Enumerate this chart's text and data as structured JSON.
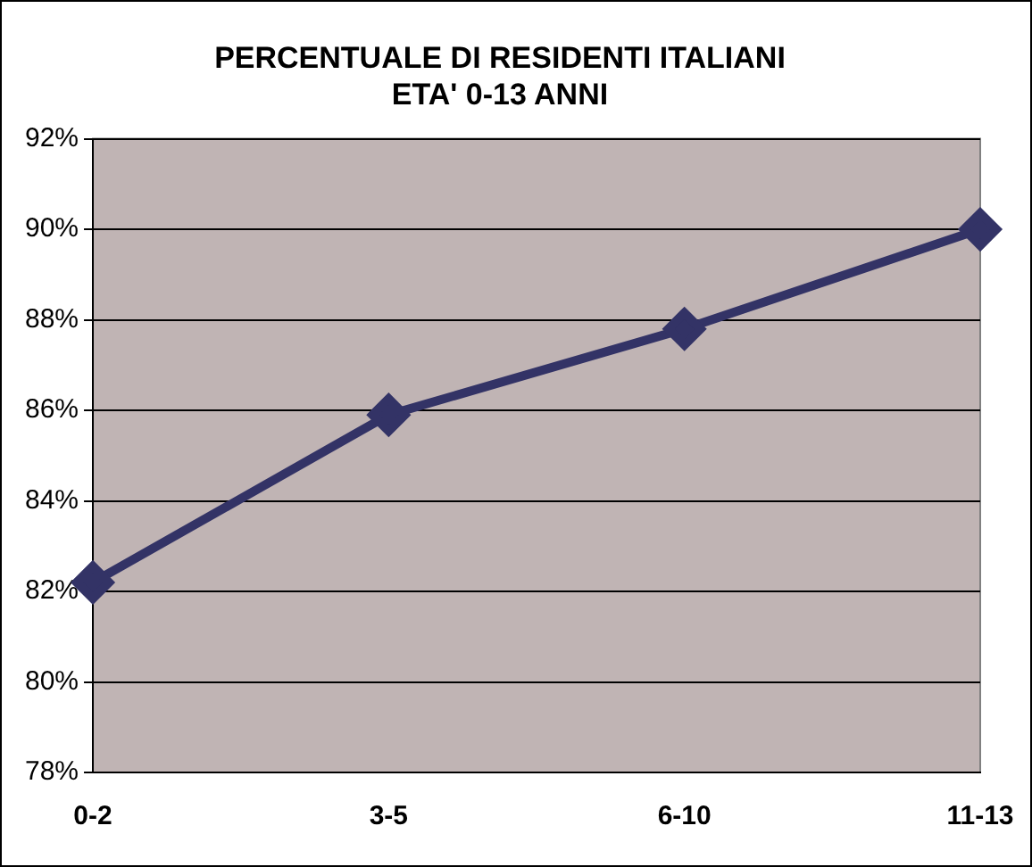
{
  "chart_data": {
    "type": "line",
    "title": "PERCENTUALE DI RESIDENTI ITALIANI\nETA' 0-13 ANNI",
    "categories": [
      "0-2",
      "3-5",
      "6-10",
      "11-13"
    ],
    "series": [
      {
        "color": "#333366",
        "values": [
          82.2,
          85.9,
          87.8,
          90.0
        ]
      }
    ],
    "ylim": [
      78,
      92
    ],
    "yticks": [
      {
        "value": 78,
        "label": "78%"
      },
      {
        "value": 80,
        "label": "80%"
      },
      {
        "value": 82,
        "label": "82%"
      },
      {
        "value": 84,
        "label": "84%"
      },
      {
        "value": 86,
        "label": "86%"
      },
      {
        "value": 88,
        "label": "88%"
      },
      {
        "value": 90,
        "label": "90%"
      },
      {
        "value": 92,
        "label": "92%"
      }
    ],
    "grid": "y",
    "legend": false,
    "marker": "diamond",
    "line_style": "solid"
  }
}
